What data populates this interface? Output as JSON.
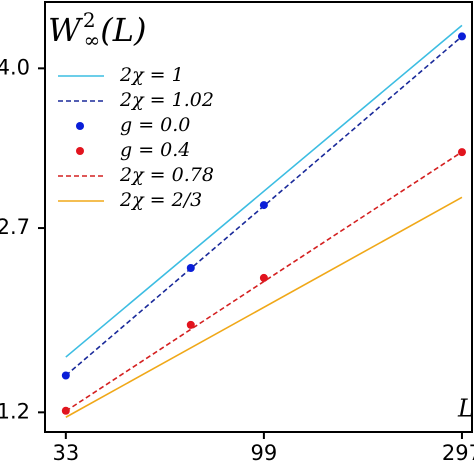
{
  "chart_data": {
    "type": "line",
    "title": {
      "base": "W",
      "sup": "2",
      "sub": "∞",
      "arg": "(L)"
    },
    "x_label": "L",
    "x_scale": "log",
    "xlim": [
      29.4,
      314
    ],
    "xticks": [
      33,
      99,
      297
    ],
    "ylim": [
      1.04,
      4.54
    ],
    "yticks": [
      {
        "value": 4.0,
        "label": "4.0"
      },
      {
        "value": 2.7,
        "label": "2.7"
      },
      {
        "value": 1.2,
        "label": "1.2"
      }
    ],
    "legend": "upper left",
    "series": [
      {
        "name": "2χ = 1",
        "style": "solid",
        "color": "#3cbde2",
        "x": [
          33,
          297
        ],
        "values": [
          1.65,
          4.35
        ]
      },
      {
        "name": "2χ = 1.02",
        "style": "dashed",
        "color": "#1a2a9a",
        "x": [
          33,
          297
        ],
        "values": [
          1.5,
          4.26
        ]
      },
      {
        "name": "g = 0.0",
        "style": "points",
        "color": "#0a1ed8",
        "x": [
          33,
          66,
          99,
          297
        ],
        "values": [
          1.5,
          2.375,
          2.887,
          4.26
        ]
      },
      {
        "name": "g = 0.4",
        "style": "points",
        "color": "#e2141e",
        "x": [
          33,
          66,
          99,
          297
        ],
        "values": [
          1.213,
          1.912,
          2.294,
          3.318
        ]
      },
      {
        "name": "2χ = 0.78",
        "style": "dashed",
        "color": "#d42020",
        "x": [
          33,
          297
        ],
        "values": [
          1.21,
          3.32
        ]
      },
      {
        "name": "2χ = 2/3",
        "style": "solid",
        "color": "#f0a818",
        "x": [
          33,
          297
        ],
        "values": [
          1.16,
          2.95
        ]
      }
    ]
  }
}
